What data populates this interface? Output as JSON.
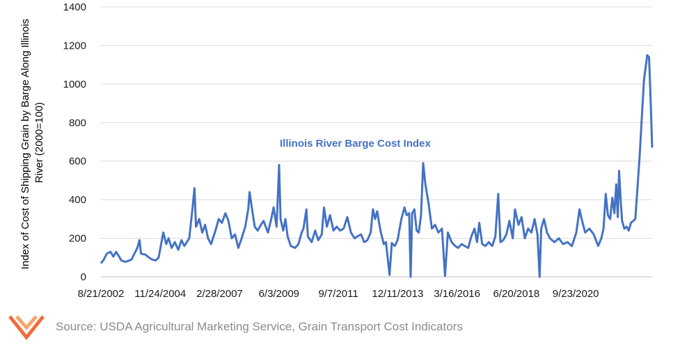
{
  "chart_data": {
    "type": "line",
    "ylabel": "Index of Cost of Shipping Grain by Barge Along Illinois River (2000=100)",
    "ylabel_lines": [
      "Index of Cost of Shipping Grain by Barge Along Illinois",
      "River (2000=100)"
    ],
    "ylim": [
      0,
      1400
    ],
    "yticks": [
      0,
      200,
      400,
      600,
      800,
      1000,
      1200,
      1400
    ],
    "xlim": [
      "2002-08-21",
      "2023-08-23"
    ],
    "xtick_labels": [
      "8/21/2002",
      "11/24/2004",
      "2/28/2007",
      "6/3/2009",
      "9/7/2011",
      "12/11/2013",
      "3/16/2016",
      "6/20/2018",
      "9/23/2020"
    ],
    "xtick_dates": [
      "2002-08-21",
      "2004-11-24",
      "2007-02-28",
      "2009-06-03",
      "2011-09-07",
      "2013-12-11",
      "2016-03-16",
      "2018-06-20",
      "2020-09-23"
    ],
    "grid": "horizontal",
    "annotation": "Illinois River Barge Cost Index",
    "line_color": "#4472C4",
    "series": [
      {
        "values": [
          [
            "2002-08-21",
            70
          ],
          [
            "2002-10-01",
            90
          ],
          [
            "2002-11-10",
            120
          ],
          [
            "2003-01-01",
            130
          ],
          [
            "2003-02-10",
            105
          ],
          [
            "2003-03-20",
            130
          ],
          [
            "2003-05-01",
            105
          ],
          [
            "2003-06-01",
            85
          ],
          [
            "2003-07-20",
            78
          ],
          [
            "2003-09-01",
            82
          ],
          [
            "2003-10-20",
            90
          ],
          [
            "2004-01-10",
            150
          ],
          [
            "2004-02-10",
            190
          ],
          [
            "2004-03-01",
            120
          ],
          [
            "2004-05-01",
            115
          ],
          [
            "2004-06-20",
            100
          ],
          [
            "2004-08-01",
            90
          ],
          [
            "2004-09-20",
            85
          ],
          [
            "2004-11-01",
            100
          ],
          [
            "2005-01-05",
            230
          ],
          [
            "2005-02-15",
            170
          ],
          [
            "2005-03-20",
            200
          ],
          [
            "2005-05-01",
            150
          ],
          [
            "2005-06-15",
            180
          ],
          [
            "2005-08-01",
            140
          ],
          [
            "2005-09-15",
            190
          ],
          [
            "2005-10-25",
            160
          ],
          [
            "2006-01-01",
            200
          ],
          [
            "2006-02-20",
            370
          ],
          [
            "2006-03-15",
            460
          ],
          [
            "2006-04-05",
            260
          ],
          [
            "2006-05-20",
            300
          ],
          [
            "2006-07-01",
            230
          ],
          [
            "2006-08-10",
            270
          ],
          [
            "2006-09-20",
            200
          ],
          [
            "2006-11-01",
            170
          ],
          [
            "2007-01-01",
            240
          ],
          [
            "2007-02-15",
            300
          ],
          [
            "2007-04-01",
            280
          ],
          [
            "2007-05-20",
            330
          ],
          [
            "2007-07-01",
            290
          ],
          [
            "2007-08-15",
            200
          ],
          [
            "2007-10-01",
            220
          ],
          [
            "2007-11-15",
            150
          ],
          [
            "2008-01-01",
            200
          ],
          [
            "2008-02-20",
            260
          ],
          [
            "2008-04-01",
            350
          ],
          [
            "2008-04-20",
            440
          ],
          [
            "2008-05-20",
            360
          ],
          [
            "2008-07-01",
            260
          ],
          [
            "2008-08-10",
            240
          ],
          [
            "2008-09-25",
            270
          ],
          [
            "2008-11-01",
            290
          ],
          [
            "2009-01-01",
            230
          ],
          [
            "2009-02-15",
            300
          ],
          [
            "2009-03-20",
            360
          ],
          [
            "2009-05-01",
            260
          ],
          [
            "2009-06-05",
            580
          ],
          [
            "2009-06-25",
            300
          ],
          [
            "2009-08-01",
            240
          ],
          [
            "2009-09-01",
            300
          ],
          [
            "2009-10-01",
            210
          ],
          [
            "2009-11-15",
            160
          ],
          [
            "2010-01-15",
            150
          ],
          [
            "2010-03-01",
            170
          ],
          [
            "2010-04-15",
            230
          ],
          [
            "2010-05-10",
            250
          ],
          [
            "2010-06-20",
            350
          ],
          [
            "2010-07-10",
            210
          ],
          [
            "2010-09-01",
            180
          ],
          [
            "2010-10-20",
            240
          ],
          [
            "2010-12-01",
            190
          ],
          [
            "2011-01-20",
            220
          ],
          [
            "2011-02-20",
            360
          ],
          [
            "2011-04-01",
            260
          ],
          [
            "2011-05-15",
            320
          ],
          [
            "2011-07-01",
            240
          ],
          [
            "2011-08-15",
            260
          ],
          [
            "2011-10-01",
            240
          ],
          [
            "2011-11-20",
            250
          ],
          [
            "2012-01-10",
            310
          ],
          [
            "2012-03-01",
            230
          ],
          [
            "2012-04-20",
            200
          ],
          [
            "2012-06-01",
            210
          ],
          [
            "2012-07-20",
            220
          ],
          [
            "2012-09-01",
            180
          ],
          [
            "2012-10-15",
            190
          ],
          [
            "2012-12-01",
            230
          ],
          [
            "2013-01-01",
            350
          ],
          [
            "2013-02-01",
            300
          ],
          [
            "2013-03-01",
            340
          ],
          [
            "2013-04-15",
            240
          ],
          [
            "2013-06-01",
            170
          ],
          [
            "2013-07-01",
            180
          ],
          [
            "2013-08-20",
            10
          ],
          [
            "2013-09-20",
            175
          ],
          [
            "2013-11-01",
            160
          ],
          [
            "2013-12-10",
            190
          ],
          [
            "2014-02-01",
            300
          ],
          [
            "2014-03-15",
            360
          ],
          [
            "2014-04-15",
            320
          ],
          [
            "2014-05-20",
            330
          ],
          [
            "2014-06-10",
            0
          ],
          [
            "2014-07-01",
            330
          ],
          [
            "2014-08-01",
            350
          ],
          [
            "2014-09-01",
            240
          ],
          [
            "2014-10-01",
            230
          ],
          [
            "2014-11-01",
            320
          ],
          [
            "2014-12-01",
            590
          ],
          [
            "2015-01-01",
            480
          ],
          [
            "2015-02-15",
            380
          ],
          [
            "2015-04-01",
            250
          ],
          [
            "2015-05-15",
            270
          ],
          [
            "2015-07-01",
            230
          ],
          [
            "2015-08-20",
            250
          ],
          [
            "2015-10-01",
            5
          ],
          [
            "2015-11-10",
            230
          ],
          [
            "2016-01-01",
            180
          ],
          [
            "2016-02-20",
            160
          ],
          [
            "2016-04-01",
            150
          ],
          [
            "2016-05-20",
            170
          ],
          [
            "2016-07-01",
            160
          ],
          [
            "2016-08-20",
            150
          ],
          [
            "2016-10-01",
            210
          ],
          [
            "2016-11-15",
            250
          ],
          [
            "2016-12-20",
            180
          ],
          [
            "2017-01-20",
            280
          ],
          [
            "2017-03-01",
            170
          ],
          [
            "2017-04-15",
            160
          ],
          [
            "2017-06-01",
            180
          ],
          [
            "2017-07-20",
            160
          ],
          [
            "2017-09-01",
            210
          ],
          [
            "2017-10-10",
            430
          ],
          [
            "2017-11-10",
            180
          ],
          [
            "2017-12-20",
            190
          ],
          [
            "2018-02-01",
            220
          ],
          [
            "2018-03-15",
            290
          ],
          [
            "2018-05-01",
            200
          ],
          [
            "2018-06-01",
            350
          ],
          [
            "2018-07-20",
            270
          ],
          [
            "2018-09-01",
            310
          ],
          [
            "2018-10-15",
            200
          ],
          [
            "2018-12-01",
            250
          ],
          [
            "2019-01-15",
            230
          ],
          [
            "2019-03-01",
            300
          ],
          [
            "2019-04-10",
            220
          ],
          [
            "2019-05-10",
            0
          ],
          [
            "2019-06-01",
            250
          ],
          [
            "2019-07-10",
            300
          ],
          [
            "2019-08-20",
            230
          ],
          [
            "2019-10-01",
            200
          ],
          [
            "2019-12-01",
            180
          ],
          [
            "2020-02-01",
            200
          ],
          [
            "2020-04-01",
            170
          ],
          [
            "2020-06-01",
            180
          ],
          [
            "2020-08-01",
            160
          ],
          [
            "2020-10-01",
            230
          ],
          [
            "2020-11-15",
            350
          ],
          [
            "2020-12-15",
            300
          ],
          [
            "2021-02-01",
            230
          ],
          [
            "2021-04-01",
            250
          ],
          [
            "2021-06-01",
            220
          ],
          [
            "2021-08-01",
            160
          ],
          [
            "2021-09-15",
            200
          ],
          [
            "2021-10-15",
            250
          ],
          [
            "2021-11-15",
            430
          ],
          [
            "2021-12-15",
            320
          ],
          [
            "2022-01-15",
            300
          ],
          [
            "2022-02-15",
            410
          ],
          [
            "2022-03-15",
            330
          ],
          [
            "2022-04-10",
            480
          ],
          [
            "2022-05-01",
            310
          ],
          [
            "2022-05-20",
            550
          ],
          [
            "2022-06-10",
            400
          ],
          [
            "2022-07-01",
            290
          ],
          [
            "2022-08-01",
            250
          ],
          [
            "2022-09-01",
            260
          ],
          [
            "2022-10-01",
            240
          ],
          [
            "2022-11-01",
            280
          ],
          [
            "2023-01-01",
            300
          ],
          [
            "2023-03-01",
            620
          ],
          [
            "2023-05-01",
            1020
          ],
          [
            "2023-06-15",
            1150
          ],
          [
            "2023-07-10",
            1140
          ],
          [
            "2023-07-30",
            950
          ],
          [
            "2023-08-23",
            670
          ]
        ]
      }
    ]
  },
  "footer": {
    "source": "Source: USDA Agricultural Marketing Service, Grain Transport Cost Indicators",
    "logo_colors": [
      "#f26b3a",
      "#f9a56a"
    ]
  }
}
